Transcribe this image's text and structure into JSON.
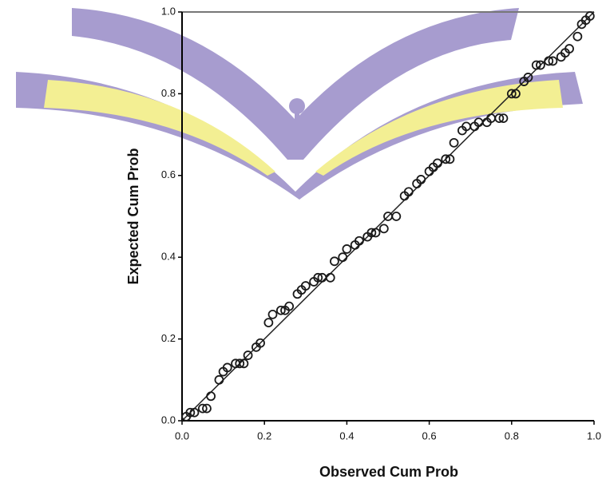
{
  "chart_data": {
    "type": "scatter",
    "x_label": "Observed Cum Prob",
    "y_label": "Expected Cum Prob",
    "xlim": [
      0,
      1
    ],
    "ylim": [
      0,
      1
    ],
    "xticks": [
      {
        "value": 0,
        "label": "0.0"
      },
      0.2,
      0.4,
      0.6,
      0.8,
      {
        "value": 1,
        "label": "1.0"
      }
    ],
    "yticks": [
      {
        "value": 0,
        "label": "0.0"
      },
      0.2,
      0.4,
      0.6,
      0.8,
      {
        "value": 1,
        "label": "1.0"
      }
    ],
    "color": "#1a1a1a",
    "x": [
      0.01,
      0.02,
      0.03,
      0.05,
      0.06,
      0.07,
      0.09,
      0.1,
      0.11,
      0.13,
      0.14,
      0.15,
      0.16,
      0.18,
      0.19,
      0.21,
      0.22,
      0.24,
      0.25,
      0.26,
      0.28,
      0.29,
      0.3,
      0.32,
      0.33,
      0.34,
      0.36,
      0.37,
      0.39,
      0.4,
      0.42,
      0.43,
      0.45,
      0.46,
      0.47,
      0.49,
      0.5,
      0.52,
      0.54,
      0.55,
      0.57,
      0.58,
      0.6,
      0.61,
      0.62,
      0.64,
      0.65,
      0.66,
      0.68,
      0.69,
      0.71,
      0.72,
      0.74,
      0.75,
      0.77,
      0.78,
      0.8,
      0.81,
      0.83,
      0.84,
      0.86,
      0.87,
      0.89,
      0.9,
      0.92,
      0.93,
      0.94,
      0.96,
      0.97,
      0.98,
      0.99
    ],
    "y": [
      0.01,
      0.02,
      0.02,
      0.03,
      0.03,
      0.06,
      0.1,
      0.12,
      0.13,
      0.14,
      0.14,
      0.14,
      0.16,
      0.18,
      0.19,
      0.24,
      0.26,
      0.27,
      0.27,
      0.28,
      0.31,
      0.32,
      0.33,
      0.34,
      0.35,
      0.35,
      0.35,
      0.39,
      0.4,
      0.42,
      0.43,
      0.44,
      0.45,
      0.46,
      0.46,
      0.47,
      0.5,
      0.5,
      0.55,
      0.56,
      0.58,
      0.59,
      0.61,
      0.62,
      0.63,
      0.64,
      0.64,
      0.68,
      0.71,
      0.72,
      0.72,
      0.73,
      0.73,
      0.74,
      0.74,
      0.74,
      0.8,
      0.8,
      0.83,
      0.84,
      0.87,
      0.87,
      0.88,
      0.88,
      0.89,
      0.9,
      0.91,
      0.94,
      0.97,
      0.98,
      0.99
    ]
  }
}
